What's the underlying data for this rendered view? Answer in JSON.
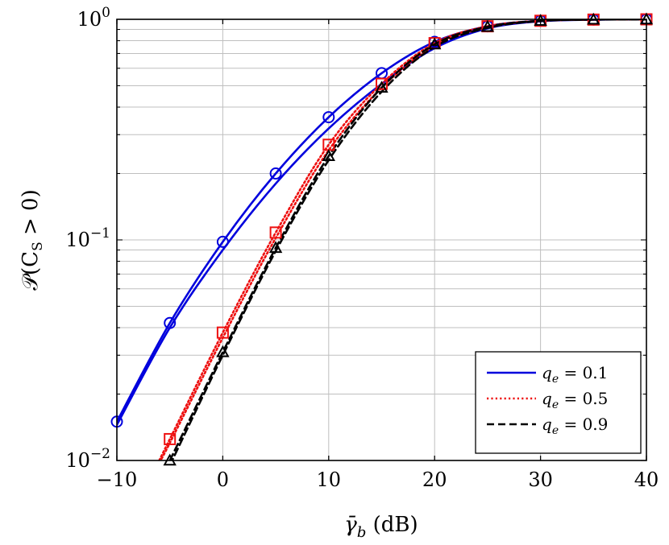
{
  "chart_data": {
    "type": "line",
    "xlabel_symbol": "γ̄",
    "xlabel_sub": "b",
    "xlabel_unit": " (dB)",
    "ylabel_main": "𝒫(C",
    "ylabel_sub": "S",
    "ylabel_rest": " > 0)",
    "xlim": [
      -10,
      40
    ],
    "ylim": [
      0.01,
      1
    ],
    "yscale": "log",
    "grid": true,
    "legend_position": "bottom-right",
    "x_ticks": [
      "−10",
      "0",
      "10",
      "20",
      "30",
      "40"
    ],
    "y_ticks": [
      {
        "base": "10",
        "exp": "−2"
      },
      {
        "base": "10",
        "exp": "−1"
      },
      {
        "base": "10",
        "exp": "0"
      }
    ],
    "series": [
      {
        "name": "q_e = 0.1",
        "legend_var": "q",
        "legend_sub": "e",
        "legend_val": " = 0.1",
        "color": "#0000dd",
        "dash": "solid",
        "marker": "circle",
        "curves": [
          {
            "x": [
              -10,
              -5,
              0,
              5,
              10,
              15,
              20,
              25,
              30,
              35,
              40
            ],
            "y": [
              0.015,
              0.042,
              0.098,
              0.2,
              0.36,
              0.57,
              0.79,
              0.93,
              0.985,
              0.997,
              1.0
            ]
          },
          {
            "x": [
              -10,
              -5,
              0,
              5,
              10,
              15,
              20,
              25,
              30,
              35,
              40
            ],
            "y": [
              0.0145,
              0.04,
              0.09,
              0.18,
              0.32,
              0.51,
              0.74,
              0.91,
              0.98,
              0.996,
              1.0
            ]
          }
        ]
      },
      {
        "name": "q_e = 0.5",
        "legend_var": "q",
        "legend_sub": "e",
        "legend_val": " = 0.5",
        "color": "#ee1111",
        "dash": "dotted",
        "marker": "square",
        "curves": [
          {
            "x": [
              -6,
              -5,
              0,
              5,
              10,
              15,
              20,
              25,
              30,
              35,
              40
            ],
            "y": [
              0.01,
              0.0125,
              0.038,
              0.108,
              0.27,
              0.51,
              0.78,
              0.93,
              0.985,
              0.997,
              1.0
            ]
          },
          {
            "x": [
              -6,
              -5,
              0,
              5,
              10,
              15,
              20,
              25,
              30,
              35,
              40
            ],
            "y": [
              0.0098,
              0.012,
              0.036,
              0.102,
              0.255,
              0.49,
              0.76,
              0.92,
              0.983,
              0.997,
              1.0
            ]
          }
        ]
      },
      {
        "name": "q_e = 0.9",
        "legend_var": "q",
        "legend_sub": "e",
        "legend_val": " = 0.9",
        "color": "#000000",
        "dash": "dashed",
        "marker": "triangle",
        "curves": [
          {
            "x": [
              -5,
              0,
              5,
              10,
              15,
              20,
              25,
              30,
              35,
              40
            ],
            "y": [
              0.01,
              0.031,
              0.092,
              0.24,
              0.49,
              0.77,
              0.925,
              0.985,
              0.997,
              1.0
            ]
          },
          {
            "x": [
              -5,
              0,
              5,
              10,
              15,
              20,
              25,
              30,
              35,
              40
            ],
            "y": [
              0.0095,
              0.03,
              0.089,
              0.23,
              0.47,
              0.75,
              0.915,
              0.983,
              0.997,
              1.0
            ]
          }
        ]
      }
    ]
  }
}
